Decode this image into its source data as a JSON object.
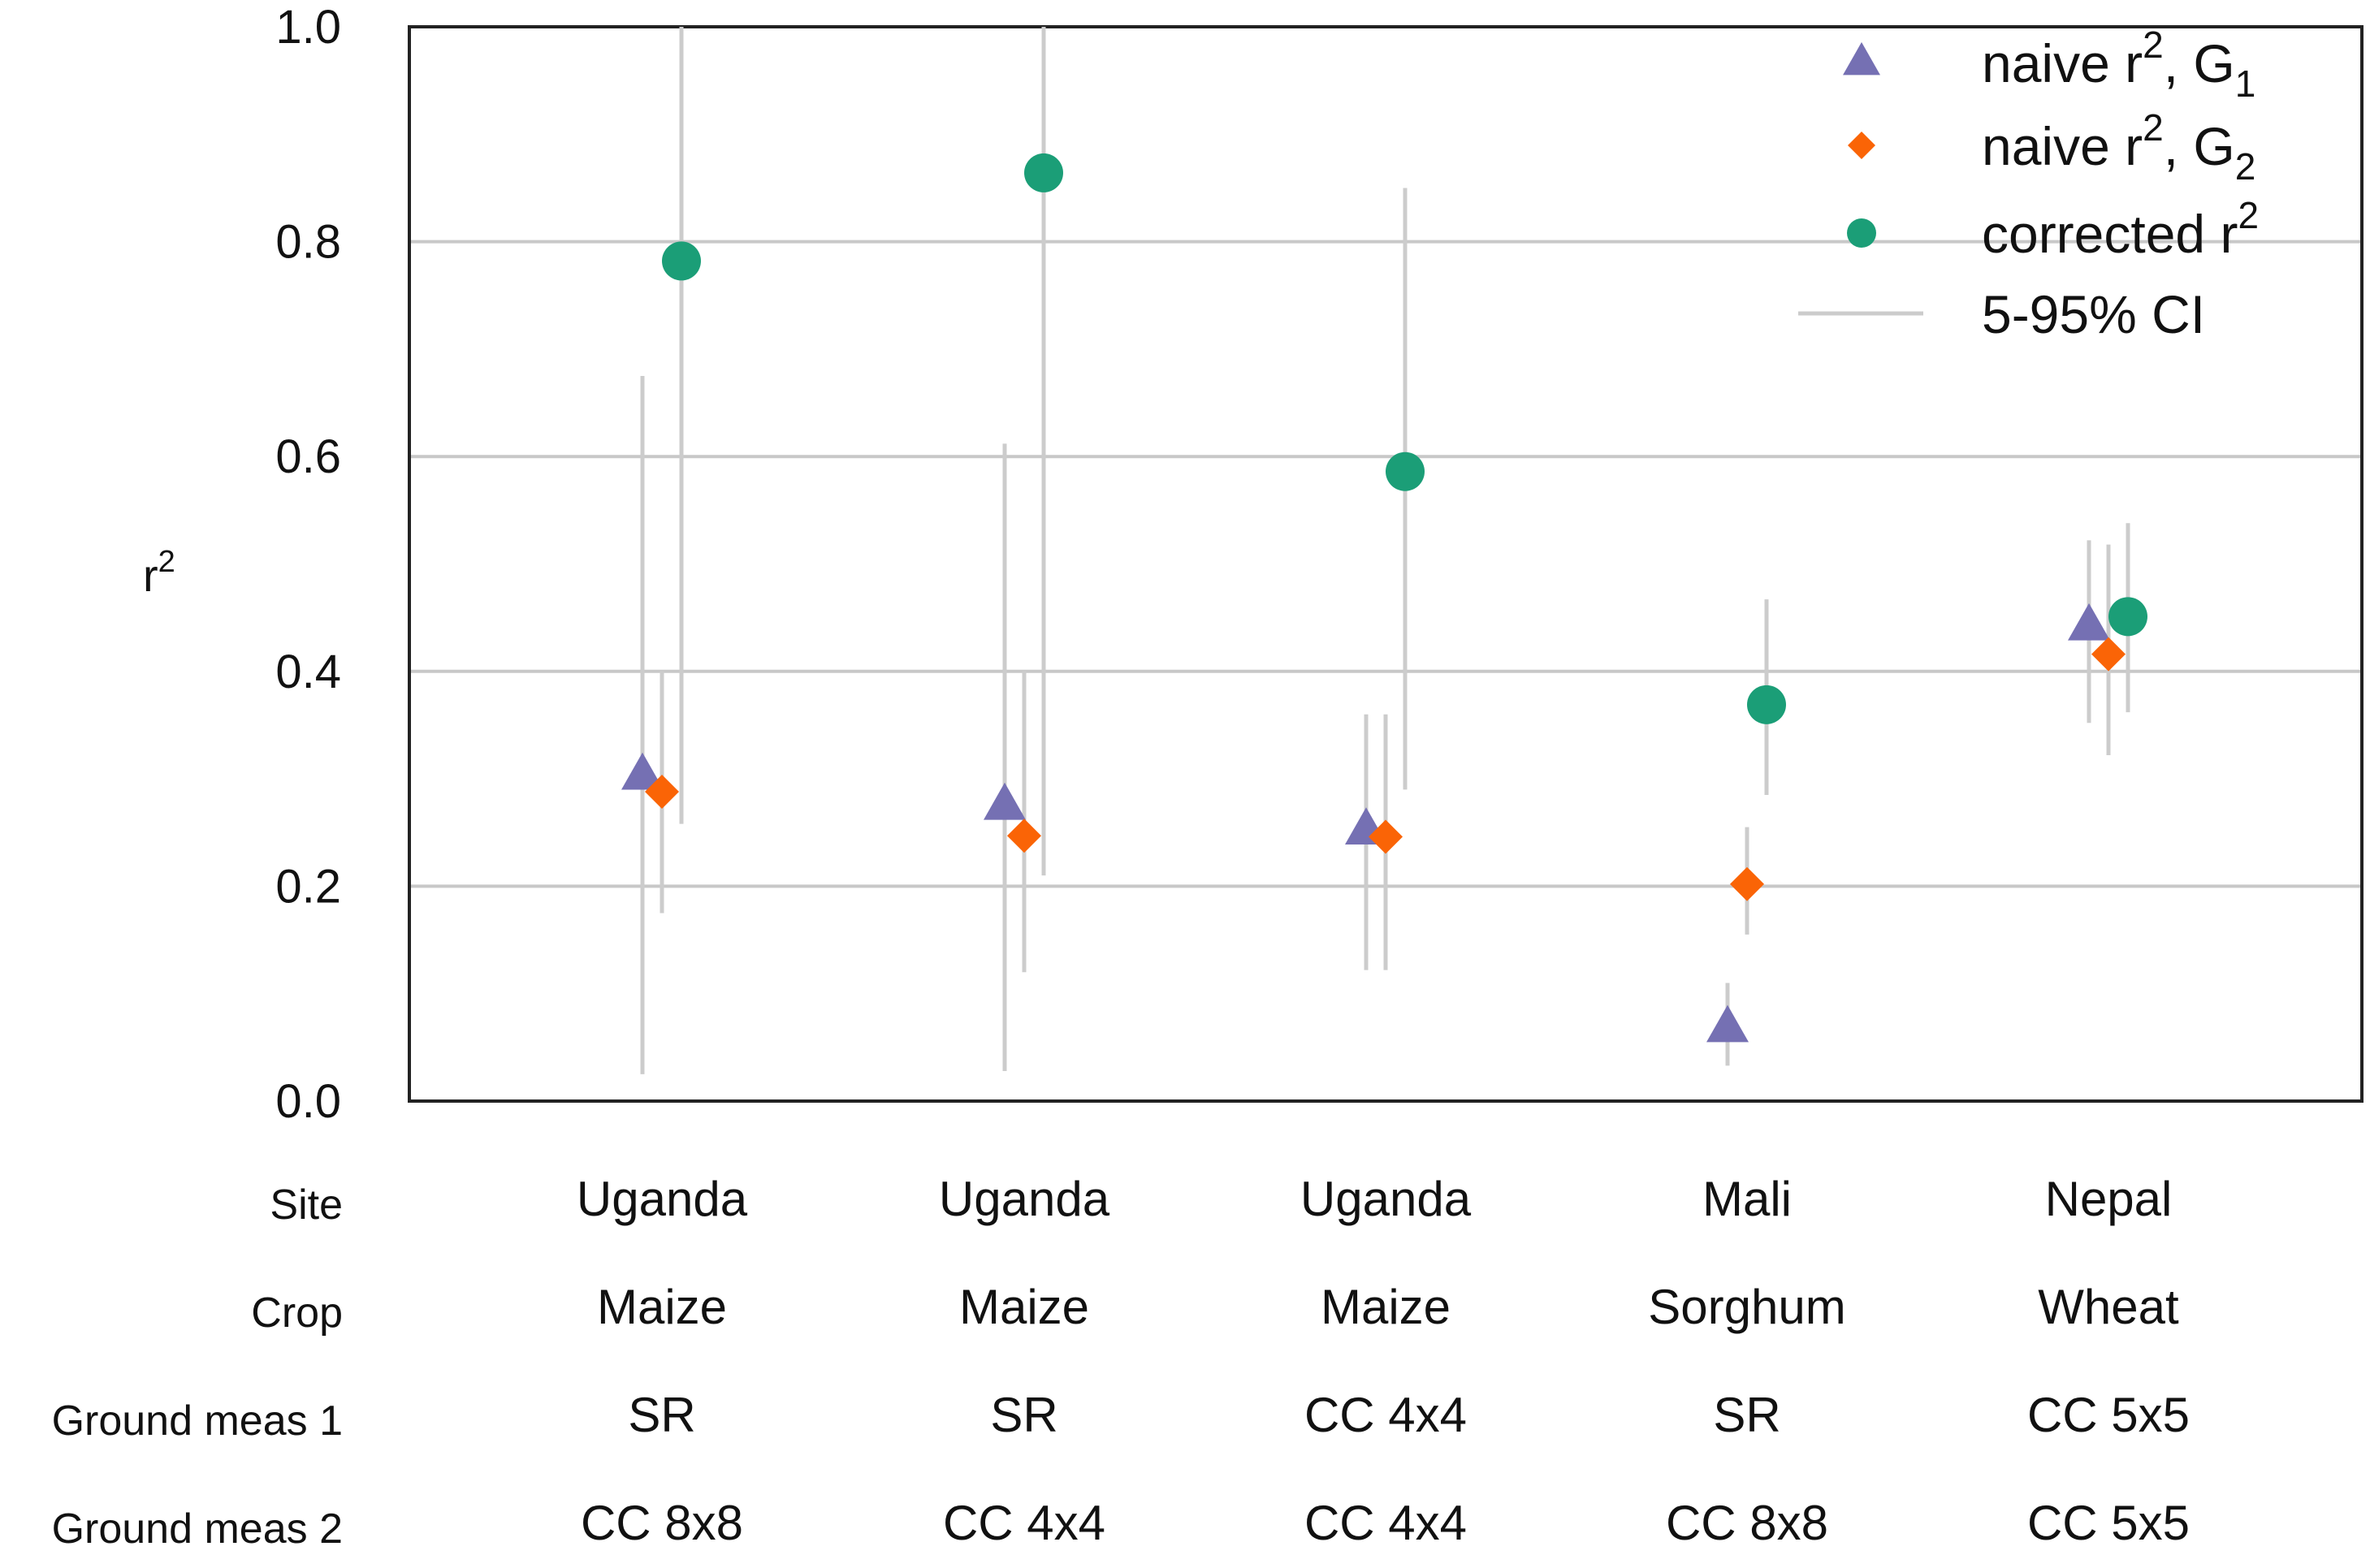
{
  "chart_data": {
    "type": "scatter",
    "title": "",
    "xlabel": "",
    "ylabel": "r",
    "ylabel_sup": "2",
    "ylim": [
      0,
      1
    ],
    "yticks": [
      "0.0",
      "0.2",
      "0.4",
      "0.6",
      "0.8",
      "1.0"
    ],
    "grid": true,
    "legend_position": "top-right",
    "groups": [
      "Uganda",
      "Uganda",
      "Uganda",
      "Mali",
      "Nepal"
    ],
    "series": [
      {
        "name": "naive r², G1",
        "label_main": "naive r",
        "label_sup": "2",
        "label_tail": ", G",
        "label_sub": "1",
        "marker": "triangle",
        "color": "#7570b3",
        "values": [
          0.303,
          0.275,
          0.252,
          0.068,
          0.442
        ],
        "ci_low": [
          0.025,
          0.028,
          0.122,
          0.033,
          0.352
        ],
        "ci_high": [
          0.675,
          0.612,
          0.36,
          0.11,
          0.522
        ]
      },
      {
        "name": "naive r², G2",
        "label_main": "naive r",
        "label_sup": "2",
        "label_tail": ", G",
        "label_sub": "2",
        "marker": "diamond",
        "color": "#fa6406",
        "values": [
          0.288,
          0.247,
          0.246,
          0.202,
          0.416
        ],
        "ci_low": [
          0.175,
          0.12,
          0.122,
          0.155,
          0.322
        ],
        "ci_high": [
          0.4,
          0.4,
          0.36,
          0.255,
          0.518
        ]
      },
      {
        "name": "corrected r²",
        "label_main": "corrected r",
        "label_sup": "2",
        "label_tail": "",
        "label_sub": "",
        "marker": "circle",
        "color": "#1b9e77",
        "values": [
          0.782,
          0.864,
          0.586,
          0.369,
          0.451
        ],
        "ci_low": [
          0.258,
          0.21,
          0.29,
          0.285,
          0.362
        ],
        "ci_high": [
          1.0,
          1.0,
          0.85,
          0.467,
          0.538
        ]
      }
    ],
    "ci_legend": "5-95% CI",
    "ci_color": "#cccccc",
    "row_labels": [
      "Site",
      "Crop",
      "Ground meas 1",
      "Ground meas 2"
    ],
    "rows": [
      [
        "Uganda",
        "Uganda",
        "Uganda",
        "Mali",
        "Nepal"
      ],
      [
        "Maize",
        "Maize",
        "Maize",
        "Sorghum",
        "Wheat"
      ],
      [
        "SR",
        "SR",
        "CC 4x4",
        "SR",
        "CC 5x5"
      ],
      [
        "CC 8x8",
        "CC 4x4",
        "CC 4x4",
        "CC 8x8",
        "CC 5x5"
      ]
    ]
  }
}
